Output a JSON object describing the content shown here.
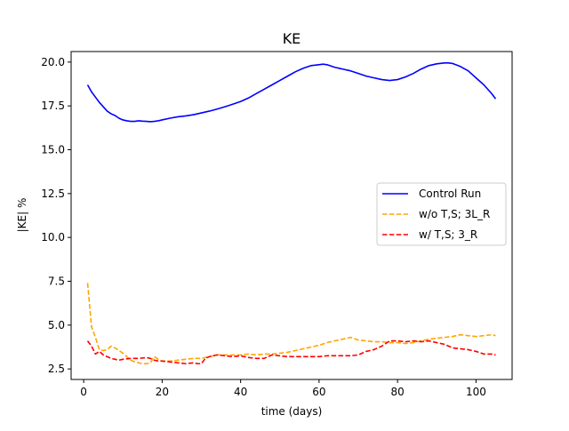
{
  "chart_data": {
    "type": "line",
    "title": "KE",
    "xlabel": "time (days)",
    "ylabel": "|KE| %",
    "xlim": [
      -3.2,
      109.2
    ],
    "ylim": [
      1.9,
      20.6
    ],
    "xticks": [
      0,
      20,
      40,
      60,
      80,
      100
    ],
    "yticks": [
      2.5,
      5.0,
      7.5,
      10.0,
      12.5,
      15.0,
      17.5,
      20.0
    ],
    "xtick_labels": [
      "0",
      "20",
      "40",
      "60",
      "80",
      "100"
    ],
    "ytick_labels": [
      "2.5",
      "5.0",
      "7.5",
      "10.0",
      "12.5",
      "15.0",
      "17.5",
      "20.0"
    ],
    "grid": false,
    "legend_position": "center-right",
    "series": [
      {
        "name": "Control Run",
        "color": "#0000ff",
        "style": "solid",
        "x": [
          1,
          2,
          3,
          4,
          5,
          6,
          7,
          8,
          9,
          10,
          11,
          12,
          13,
          14,
          15,
          16,
          17,
          18,
          19,
          20,
          22,
          24,
          26,
          28,
          30,
          32,
          34,
          36,
          38,
          40,
          42,
          44,
          46,
          48,
          50,
          52,
          54,
          56,
          58,
          60,
          61,
          62,
          64,
          66,
          68,
          70,
          72,
          74,
          76,
          78,
          80,
          82,
          84,
          86,
          88,
          90,
          92,
          93,
          94,
          96,
          98,
          100,
          102,
          104,
          105
        ],
        "y": [
          18.7,
          18.3,
          18.0,
          17.7,
          17.45,
          17.2,
          17.05,
          16.95,
          16.8,
          16.7,
          16.65,
          16.62,
          16.62,
          16.65,
          16.63,
          16.62,
          16.6,
          16.62,
          16.65,
          16.7,
          16.8,
          16.88,
          16.93,
          17.0,
          17.1,
          17.2,
          17.32,
          17.45,
          17.6,
          17.75,
          17.95,
          18.2,
          18.45,
          18.7,
          18.95,
          19.2,
          19.45,
          19.65,
          19.8,
          19.85,
          19.88,
          19.85,
          19.7,
          19.6,
          19.5,
          19.35,
          19.2,
          19.1,
          19.0,
          18.95,
          19.0,
          19.15,
          19.35,
          19.6,
          19.8,
          19.9,
          19.95,
          19.95,
          19.92,
          19.75,
          19.5,
          19.1,
          18.7,
          18.2,
          17.9
        ]
      },
      {
        "name": "w/o T,S; 3L_R",
        "color": "#ffa500",
        "style": "dashed",
        "x": [
          1,
          2,
          3,
          4,
          5,
          6,
          7,
          8,
          9,
          10,
          11,
          12,
          13,
          14,
          15,
          16,
          17,
          18,
          19,
          20,
          22,
          24,
          26,
          28,
          30,
          32,
          34,
          36,
          38,
          40,
          42,
          44,
          46,
          48,
          50,
          52,
          54,
          56,
          58,
          60,
          62,
          64,
          66,
          68,
          70,
          72,
          74,
          76,
          78,
          80,
          82,
          84,
          86,
          88,
          90,
          92,
          94,
          96,
          98,
          100,
          102,
          104,
          105
        ],
        "y": [
          7.4,
          4.9,
          4.3,
          3.6,
          3.55,
          3.6,
          3.8,
          3.7,
          3.55,
          3.4,
          3.2,
          3.0,
          2.9,
          2.85,
          2.8,
          2.8,
          2.85,
          3.2,
          3.05,
          2.95,
          2.95,
          3.0,
          3.05,
          3.1,
          3.1,
          3.2,
          3.3,
          3.3,
          3.3,
          3.3,
          3.35,
          3.3,
          3.35,
          3.35,
          3.4,
          3.45,
          3.55,
          3.65,
          3.75,
          3.85,
          4.0,
          4.1,
          4.2,
          4.3,
          4.15,
          4.1,
          4.05,
          4.05,
          4.0,
          4.0,
          3.95,
          4.0,
          4.1,
          4.2,
          4.25,
          4.3,
          4.35,
          4.45,
          4.4,
          4.35,
          4.4,
          4.45,
          4.4
        ]
      },
      {
        "name": "w/ T,S; 3_R",
        "color": "#ff0000",
        "style": "dashed",
        "x": [
          1,
          2,
          3,
          4,
          5,
          6,
          7,
          8,
          9,
          10,
          12,
          14,
          16,
          17,
          18,
          19,
          20,
          22,
          24,
          26,
          28,
          29,
          30,
          31,
          32,
          34,
          36,
          38,
          40,
          42,
          44,
          46,
          48,
          50,
          52,
          54,
          56,
          58,
          60,
          62,
          64,
          66,
          68,
          70,
          72,
          74,
          76,
          78,
          80,
          82,
          84,
          86,
          88,
          90,
          92,
          94,
          96,
          98,
          100,
          102,
          104,
          105
        ],
        "y": [
          4.1,
          3.8,
          3.35,
          3.5,
          3.3,
          3.2,
          3.1,
          3.05,
          3.0,
          3.05,
          3.1,
          3.1,
          3.15,
          3.1,
          3.0,
          2.95,
          2.95,
          2.9,
          2.85,
          2.8,
          2.85,
          2.8,
          2.8,
          3.1,
          3.2,
          3.3,
          3.25,
          3.2,
          3.25,
          3.15,
          3.1,
          3.1,
          3.3,
          3.25,
          3.2,
          3.2,
          3.2,
          3.2,
          3.2,
          3.25,
          3.25,
          3.25,
          3.25,
          3.3,
          3.5,
          3.6,
          3.8,
          4.1,
          4.1,
          4.05,
          4.1,
          4.05,
          4.1,
          4.0,
          3.9,
          3.7,
          3.65,
          3.6,
          3.5,
          3.35,
          3.35,
          3.3
        ]
      }
    ]
  }
}
